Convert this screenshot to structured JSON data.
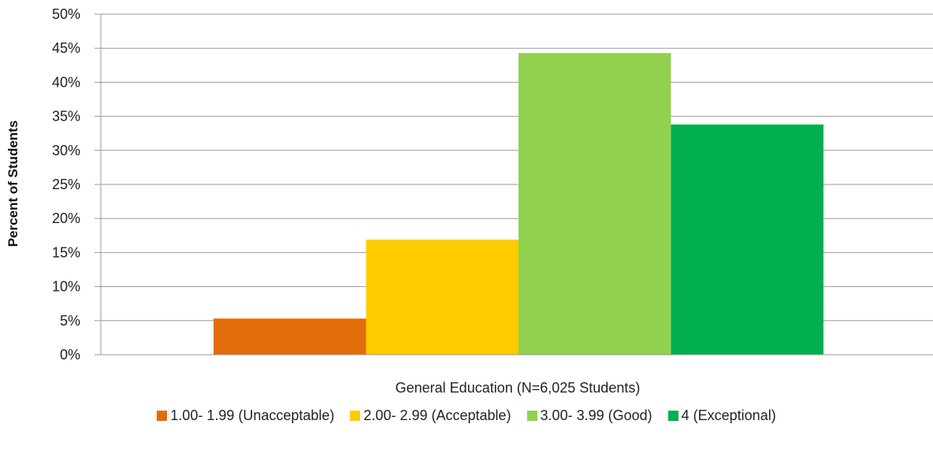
{
  "chart_data": {
    "type": "bar",
    "xlabel": "General Education (N=6,025 Students)",
    "ylabel": "Percent of Students",
    "ylim": [
      0,
      50
    ],
    "y_ticks": [
      "0%",
      "5%",
      "10%",
      "15%",
      "20%",
      "25%",
      "30%",
      "35%",
      "40%",
      "45%",
      "50%"
    ],
    "grid": true,
    "legend_position": "bottom",
    "categories": [
      "General Education (N=6,025 Students)"
    ],
    "series": [
      {
        "name": "1.00- 1.99 (Unacceptable)",
        "color": "#e36c0a",
        "values": [
          5.3
        ]
      },
      {
        "name": "2.00- 2.99 (Acceptable)",
        "color": "#ffcc00",
        "values": [
          16.9
        ]
      },
      {
        "name": "3.00- 3.99 (Good)",
        "color": "#92d050",
        "values": [
          44.3
        ]
      },
      {
        "name": "4 (Exceptional)",
        "color": "#00b050",
        "values": [
          33.8
        ]
      }
    ]
  }
}
